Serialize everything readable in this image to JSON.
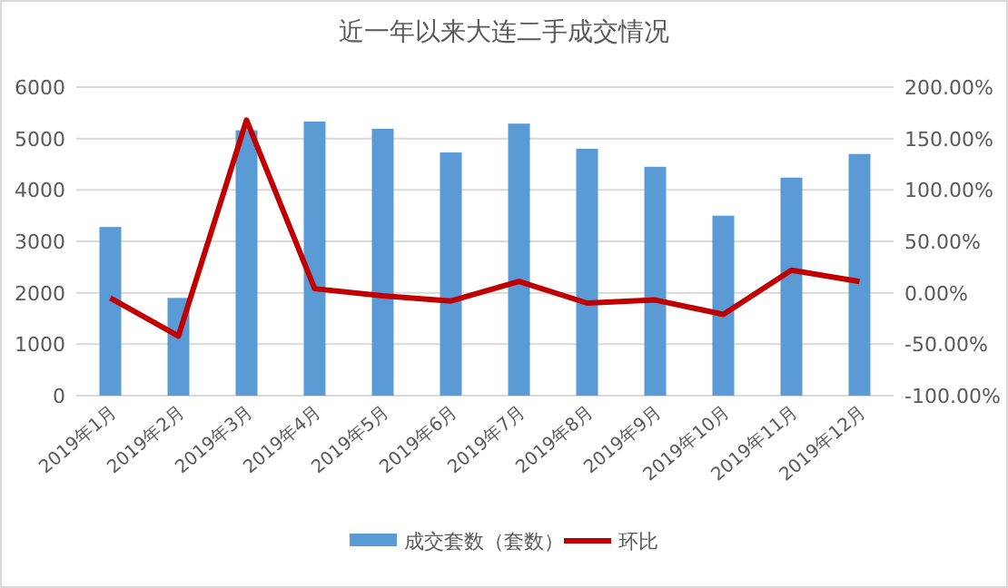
{
  "chart_data": {
    "type": "bar",
    "title": "近一年以来大连二手成交情况",
    "categories": [
      "2019年1月",
      "2019年2月",
      "2019年3月",
      "2019年4月",
      "2019年5月",
      "2019年6月",
      "2019年7月",
      "2019年8月",
      "2019年9月",
      "2019年10月",
      "2019年11月",
      "2019年12月"
    ],
    "series": [
      {
        "name": "成交套数（套数）",
        "color": "#5b9bd5",
        "values": [
          3280,
          1900,
          5160,
          5330,
          5190,
          4730,
          5290,
          4800,
          4450,
          3500,
          4240,
          4700
        ]
      },
      {
        "name": "环比",
        "type": "line",
        "axis": "y2",
        "color": "#c00000",
        "values": [
          -5,
          -42,
          168,
          4,
          -3,
          -8,
          11,
          -10,
          -7,
          -21,
          22,
          11
        ]
      }
    ],
    "ylim": [
      0,
      6000
    ],
    "yticks": [
      0,
      1000,
      2000,
      3000,
      4000,
      5000,
      6000
    ],
    "y2lim": [
      -100,
      200
    ],
    "y2ticks": [
      {
        "value": -100,
        "label": "-100.00%"
      },
      {
        "value": -50,
        "label": "-50.00%"
      },
      {
        "value": 0,
        "label": "0.00%"
      },
      {
        "value": 50,
        "label": "50.00%"
      },
      {
        "value": 100,
        "label": "100.00%"
      },
      {
        "value": 150,
        "label": "150.00%"
      },
      {
        "value": 200,
        "label": "200.00%"
      }
    ],
    "grid": "y",
    "legend": "bottom",
    "marker": "none"
  }
}
